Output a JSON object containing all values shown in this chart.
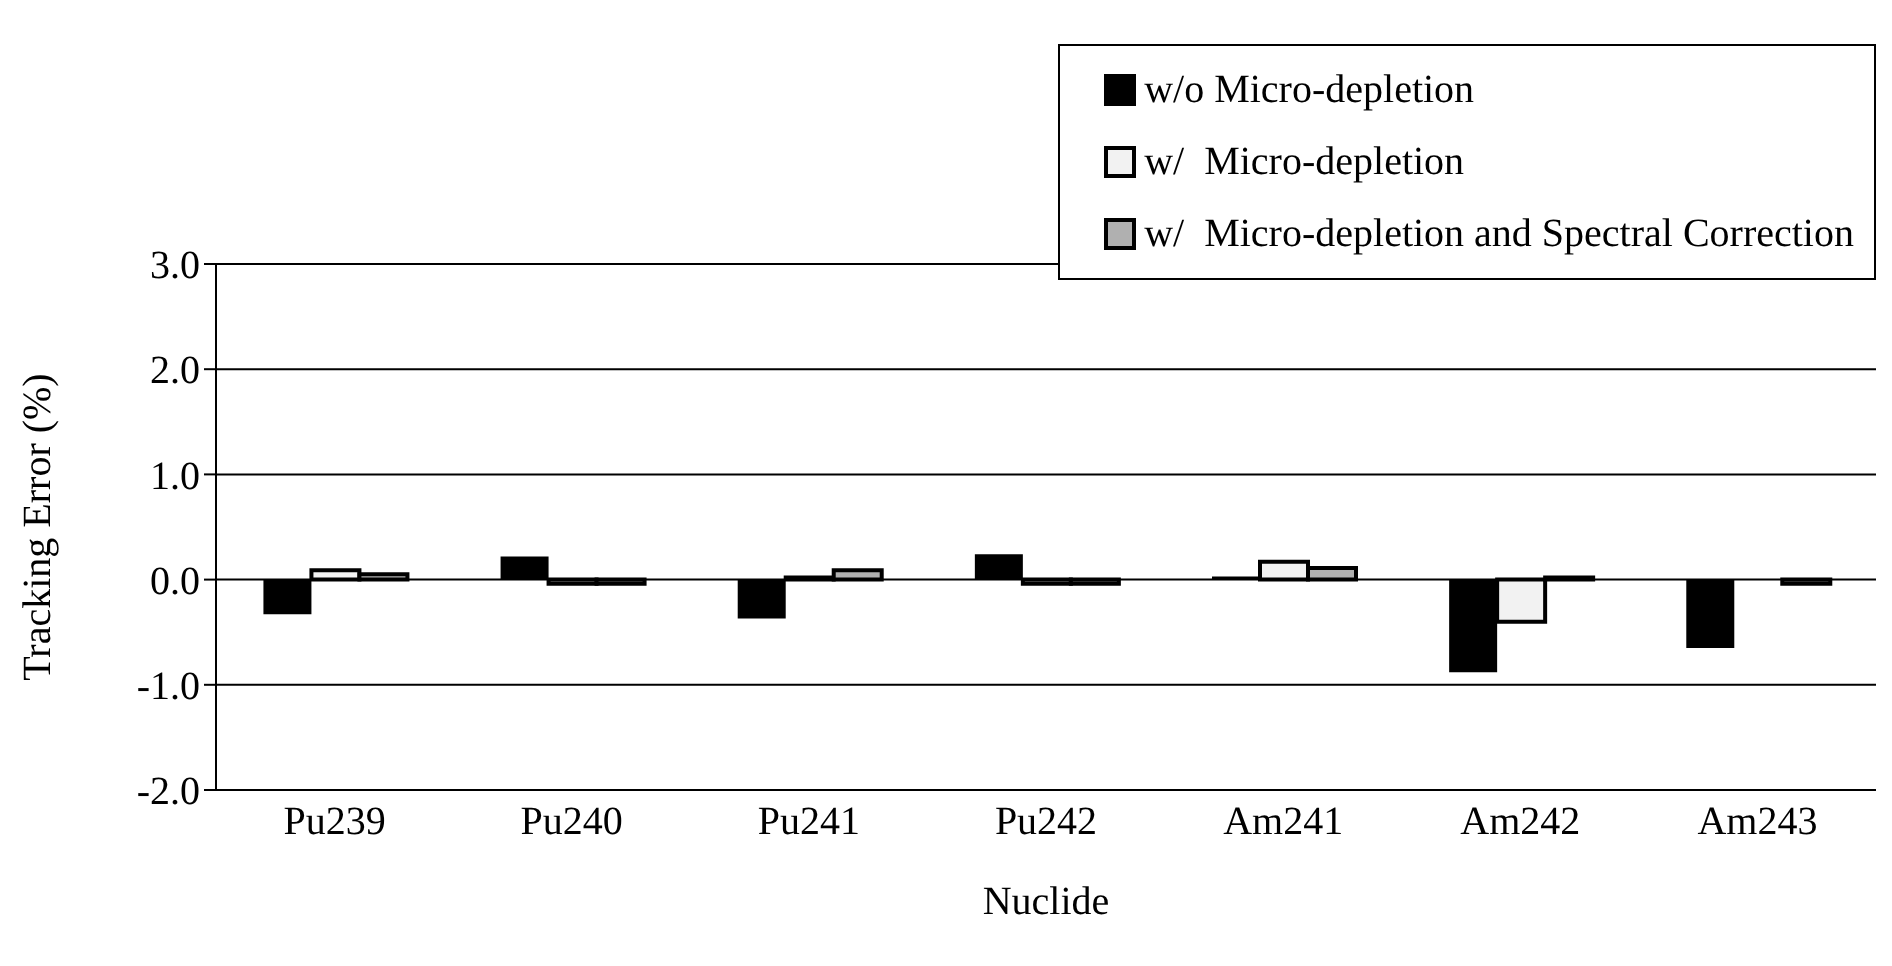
{
  "chart_data": {
    "type": "bar",
    "xlabel": "Nuclide",
    "ylabel": "Tracking Error (%)",
    "categories": [
      "Pu239",
      "Pu240",
      "Pu241",
      "Pu242",
      "Am241",
      "Am242",
      "Am243"
    ],
    "series": [
      {
        "name": "w/o Micro-depletion",
        "color": "#000000",
        "values": [
          -0.33,
          0.22,
          -0.37,
          0.24,
          0.03,
          -0.88,
          -0.65
        ]
      },
      {
        "name": "w/  Micro-depletion",
        "color": "#f2f2f2",
        "values": [
          0.09,
          -0.04,
          0.02,
          -0.04,
          0.17,
          -0.4,
          0
        ]
      },
      {
        "name": "w/  Micro-depletion and Spectral Correction",
        "color": "#b0b0b0",
        "values": [
          0.05,
          -0.04,
          0.09,
          -0.04,
          0.11,
          0.02,
          -0.04
        ]
      }
    ],
    "ylim": [
      -2,
      3
    ],
    "yticks": [
      {
        "value": -2,
        "label": "-2.0"
      },
      {
        "value": -1,
        "label": "-1.0"
      },
      {
        "value": 0,
        "label": "0.0"
      },
      {
        "value": 1,
        "label": "1.0"
      },
      {
        "value": 2,
        "label": "2.0"
      },
      {
        "value": 3,
        "label": "3.0"
      }
    ],
    "grid": "y",
    "legend": "top right"
  }
}
